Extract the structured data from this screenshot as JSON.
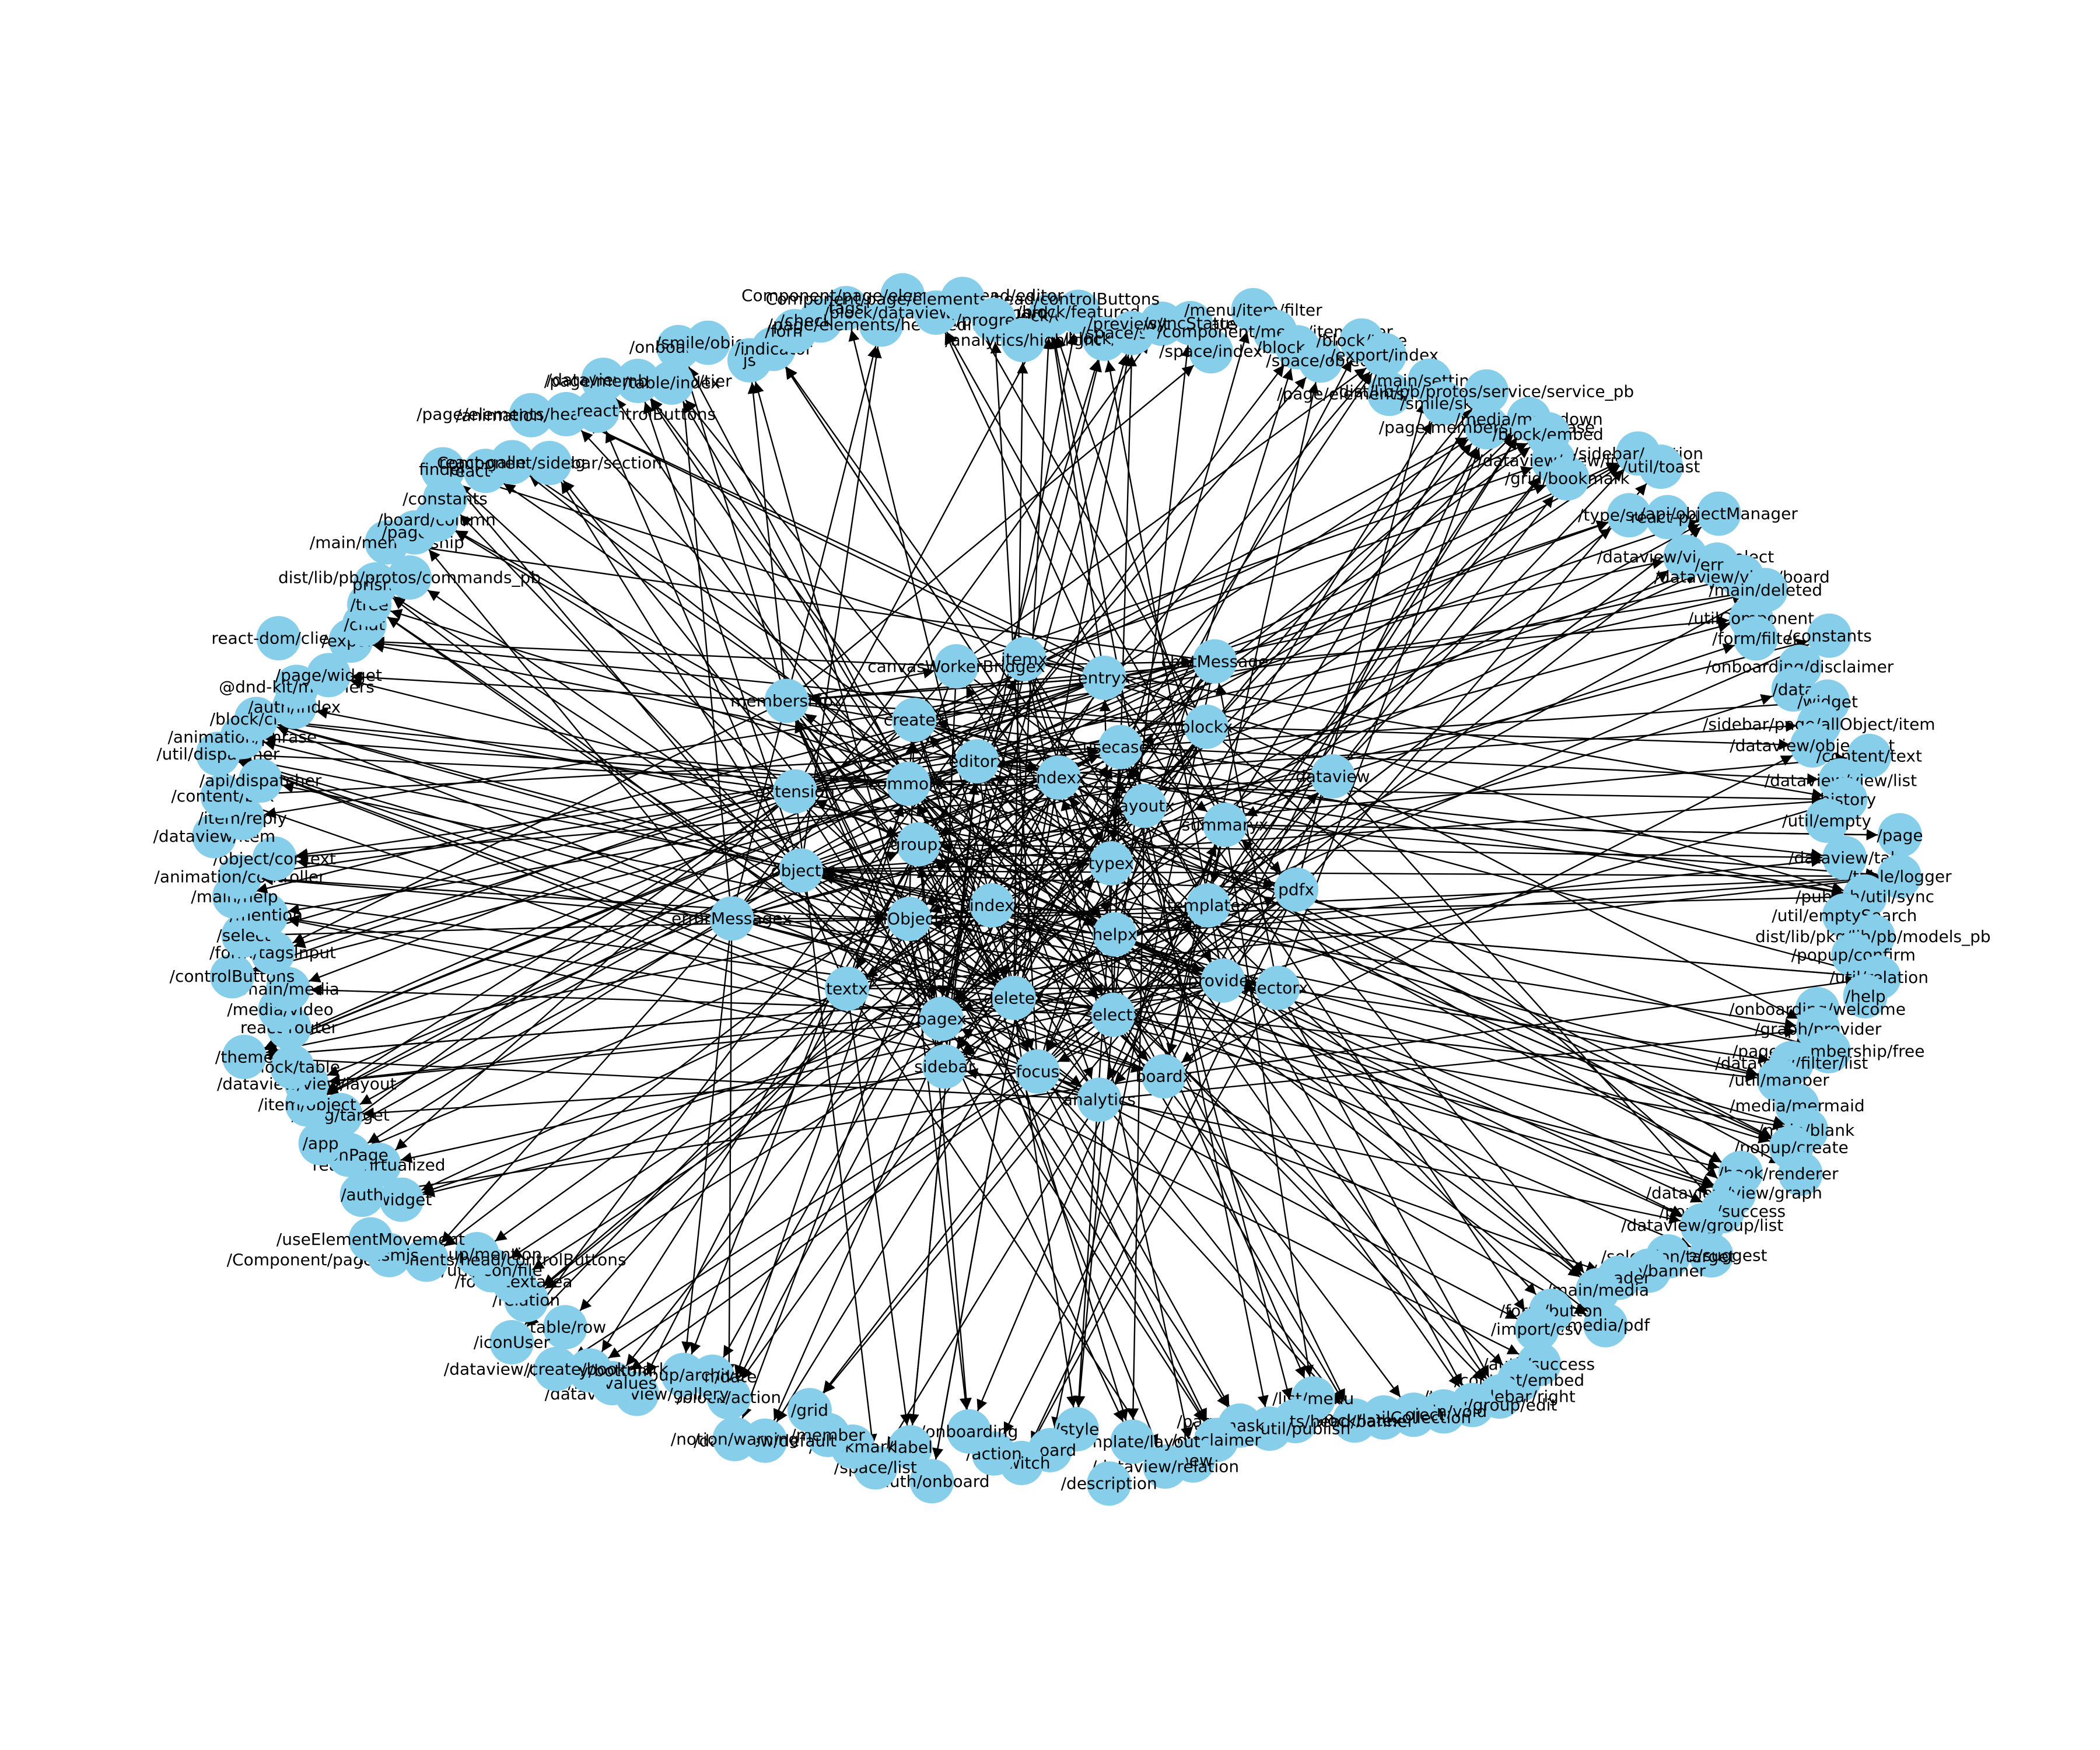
{
  "colors": {
    "node": "#87ceeb",
    "edge": "#000000",
    "label": "#000000",
    "background": "#ffffff"
  },
  "graph": {
    "type": "directed",
    "layout": "spring",
    "center_nodes": [
      "typex",
      "index",
      "indexx",
      "helpx",
      "groupx",
      "layoutx",
      "deletex",
      "editorx",
      "templatex",
      "allObjectx",
      "usecasex",
      "selectx",
      "commonx",
      "summaryx",
      "pagex",
      "itemx",
      "providex",
      "objectx",
      "blockx",
      "focus",
      "createx",
      "pdfx",
      "textx",
      "entryx",
      "boardx",
      "extension",
      "dataview",
      "sidebar",
      "canvasWorkerBridgex",
      "vectorx",
      "errorMessagex",
      "chatMessage",
      "analytics",
      "membershipx"
    ],
    "outer_nodes": [
      "/block/cover",
      "/block/featured",
      "/block/link",
      "/space/share",
      "/preview/template",
      "/syncStatus",
      "/space/index",
      "/menu/item/filter",
      "/component/menu/item/filter",
      "/block/cell",
      "/space/object",
      "/block/type",
      "/export/index",
      "/page/elements/head/cover",
      "/main/settings",
      "/smile/skip",
      "dist/lib/pb/protos/service/service_pb",
      "/page/membership/phrase",
      "/media/markdown",
      "/block/embed",
      "/dataview/view/list",
      "/grid/bookmark",
      "/sidebar/section",
      "/util/toast",
      "/type/survey",
      "react-pdf",
      "/api/objectManager",
      "/dataview/view/select",
      "/error",
      "/dataview/view/board",
      "/main/deleted",
      "/utilComponent",
      "/form/filter",
      "/constants",
      "/onboarding/disclaimer",
      "/data",
      "/widget",
      "/sidebar/page/allObject/item",
      "/dataview/object/list",
      "/content/text",
      "/dataview/view/list",
      "/history",
      "/util/empty",
      "/page",
      "/dataview/tab",
      "/table/logger",
      "/publish/util/sync",
      "/util/emptySearch",
      "dist/lib/pkg/lib/pb/models_pb",
      "/popup/confirm",
      "/util/relation",
      "/help",
      "/onboarding/welcome",
      "/graph/provider",
      "/page/membership/free",
      "/dataview/filter/list",
      "/util/mapper",
      "/media/mermaid",
      "/main/blank",
      "/popup/create",
      "/renderer",
      "/hook",
      "/dataview/view/graph",
      "/popup/success",
      "/dataview/group/list",
      "/type/suggest",
      "/selection/target",
      "/share/banner",
      "/header",
      "/main/media",
      "/media/pdf",
      "/form/button",
      "/import/csv",
      "/auth/success",
      "/content/embed",
      "/type/sidebar/right",
      "/dataview/group/edit",
      "/main/void",
      "/project",
      "/form/emailCollection",
      "/block/latex",
      "/list/menu",
      "/page/elements/head/banner",
      "/sidebar/util/publish",
      "/mask",
      "/disclaimer",
      "/new",
      "/dataview/relation",
      "/template/layout",
      "/description",
      "/style",
      "/board",
      "/switch",
      "/action",
      "/onboarding",
      "/auth/onboard",
      "/label",
      "/space/list",
      "/bookmark",
      "/member",
      "/grid",
      "/dataview/default",
      "/notion/warning",
      "/block/action",
      "/main/date",
      "/popup/archive",
      "/dataview/view/gallery",
      "/file/values",
      "/history/bottom",
      "/dataview/create/bookmark",
      "/table/row",
      "/iconUser",
      "/relation",
      "/form/textarea",
      "/util/icon/file",
      "/popup/mention",
      "/Component/page/elements/head/controlButtons",
      "prismjs",
      "/useElementMovement",
      "/widget",
      "/auth",
      "react-virtualized",
      "/iconPage",
      "/app",
      "/drag/target",
      "/item/object",
      "/dataview/view/layout",
      "/block/table",
      "/theme",
      "react-router",
      "/media/video",
      "/main/media",
      "/controlButtons",
      "/form/tagsInput",
      "/select",
      "/mention",
      "/main/help",
      "/animation/controller",
      "/object/context",
      "/dataview/item",
      "/item/reply",
      "/content/box",
      "/api/dispatcher",
      "/util/dispatcher",
      "/animation/phrase",
      "/block/child",
      "/auth/index",
      "@dnd-kit/modifiers",
      "/page/widget",
      "react-dom/client",
      "/export",
      "/chat",
      "/tree",
      "prism",
      "dist/lib/pb/protos/commands_pb",
      "/main/membership",
      "/page/ai",
      "/board/column",
      "/constants",
      "finder",
      "react-intl",
      "react-gallery-drag",
      "Component/sidebar/section",
      "/animation/canvas",
      "/page/elements/head/controlButtons",
      "react",
      "/dataview/cell",
      "/page/membership/tier",
      "/table/index",
      "/onboarding",
      "/smile/object",
      "js",
      "/indicator",
      "/format",
      "/checkbox",
      "tags",
      "/page/elements/head/editor",
      "Component/page/elements/head/editor",
      "/block/dataview/view/board",
      "Component/page/elements/head/controlButtons",
      "/progress",
      "/analytics/highlight"
    ]
  }
}
